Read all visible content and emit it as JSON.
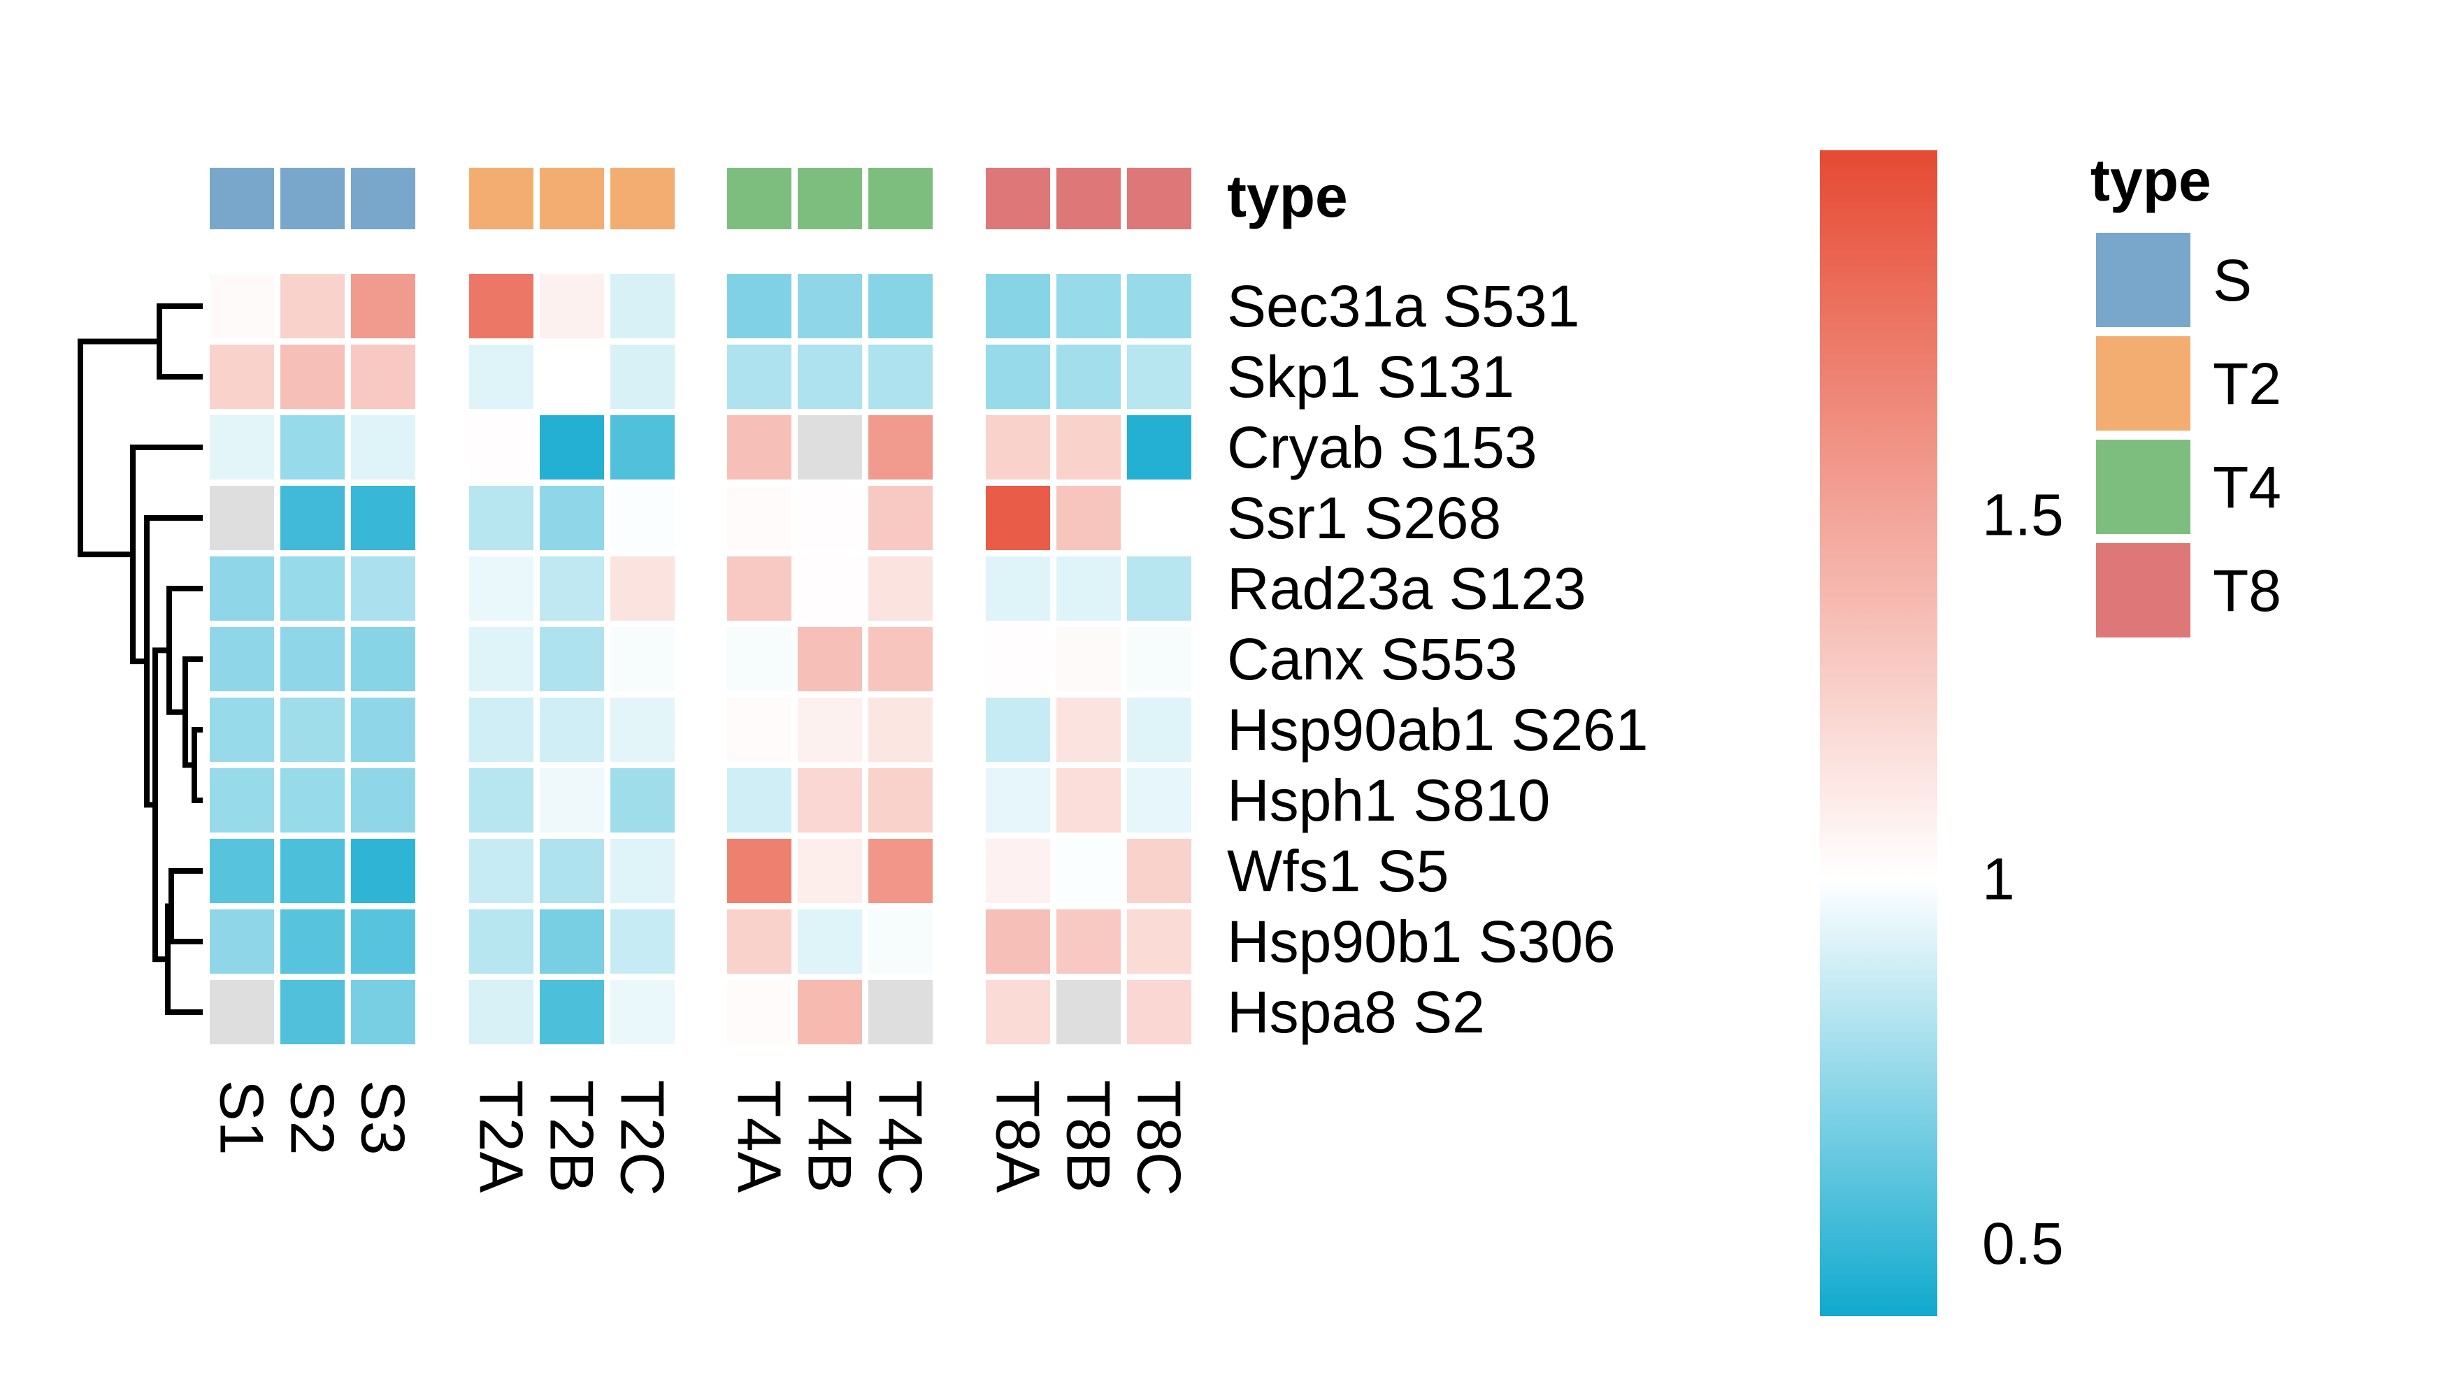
{
  "chart_data": {
    "type": "heatmap",
    "rows": [
      "Sec31a S531",
      "Skp1 S131",
      "Cryab S153",
      "Ssr1 S268",
      "Rad23a S123",
      "Canx S553",
      "Hsp90ab1 S261",
      "Hsph1 S810",
      "Wfs1 S5",
      "Hsp90b1 S306",
      "Hspa8 S2"
    ],
    "columns": [
      "S1",
      "S2",
      "S3",
      "T2A",
      "T2B",
      "T2C",
      "T4A",
      "T4B",
      "T4C",
      "T8A",
      "T8B",
      "T8C"
    ],
    "column_types": [
      "S",
      "S",
      "S",
      "T2",
      "T2",
      "T2",
      "T4",
      "T4",
      "T4",
      "T8",
      "T8",
      "T8"
    ],
    "values": [
      [
        1.03,
        1.25,
        1.55,
        1.75,
        1.08,
        0.9,
        0.68,
        0.72,
        0.7,
        0.7,
        0.74,
        0.74
      ],
      [
        1.25,
        1.35,
        1.3,
        0.92,
        1.0,
        0.9,
        0.8,
        0.8,
        0.8,
        0.74,
        0.77,
        0.82
      ],
      [
        0.93,
        0.74,
        0.92,
        1.01,
        0.45,
        0.56,
        1.35,
        null,
        1.55,
        1.25,
        1.25,
        0.45
      ],
      [
        null,
        0.52,
        0.5,
        0.82,
        0.72,
        0.99,
        1.02,
        1.01,
        1.3,
        1.9,
        1.32,
        1.0
      ],
      [
        0.72,
        0.74,
        0.79,
        0.95,
        0.84,
        1.15,
        1.3,
        1.01,
        1.15,
        0.92,
        0.92,
        0.82
      ],
      [
        0.72,
        0.72,
        0.7,
        0.92,
        0.8,
        0.98,
        0.98,
        1.35,
        1.32,
        1.01,
        1.03,
        0.98
      ],
      [
        0.74,
        0.76,
        0.72,
        0.88,
        0.88,
        0.93,
        1.02,
        1.08,
        1.14,
        0.86,
        1.15,
        0.92
      ],
      [
        0.74,
        0.74,
        0.72,
        0.82,
        0.96,
        0.76,
        0.88,
        1.22,
        1.25,
        0.94,
        1.18,
        0.94
      ],
      [
        0.58,
        0.55,
        0.48,
        0.86,
        0.8,
        0.92,
        1.7,
        1.1,
        1.58,
        1.07,
        0.99,
        1.25
      ],
      [
        0.72,
        0.58,
        0.58,
        0.82,
        0.66,
        0.86,
        1.25,
        0.92,
        0.98,
        1.35,
        1.3,
        1.2
      ],
      [
        null,
        0.56,
        0.66,
        0.9,
        0.55,
        0.95,
        1.02,
        1.38,
        null,
        1.2,
        null,
        1.22
      ]
    ],
    "na_color": "#dedede",
    "color_scale": {
      "stops": [
        {
          "value": 0.4,
          "color": "#10a9ce"
        },
        {
          "value": 1.0,
          "color": "#ffffff"
        },
        {
          "value": 2.0,
          "color": "#e64a33"
        }
      ],
      "ticks": [
        {
          "value": 0.5,
          "label": "0.5"
        },
        {
          "value": 1.0,
          "label": "1"
        },
        {
          "value": 1.5,
          "label": "1.5"
        }
      ]
    },
    "annotation": {
      "title": "type",
      "legend_title": "type",
      "categories": [
        {
          "name": "S",
          "color": "#78a7cb"
        },
        {
          "name": "T2",
          "color": "#f4ad71"
        },
        {
          "name": "T4",
          "color": "#7dbe7e"
        },
        {
          "name": "T8",
          "color": "#de7777"
        }
      ]
    },
    "row_dendrogram": true,
    "column_groups": 4
  }
}
